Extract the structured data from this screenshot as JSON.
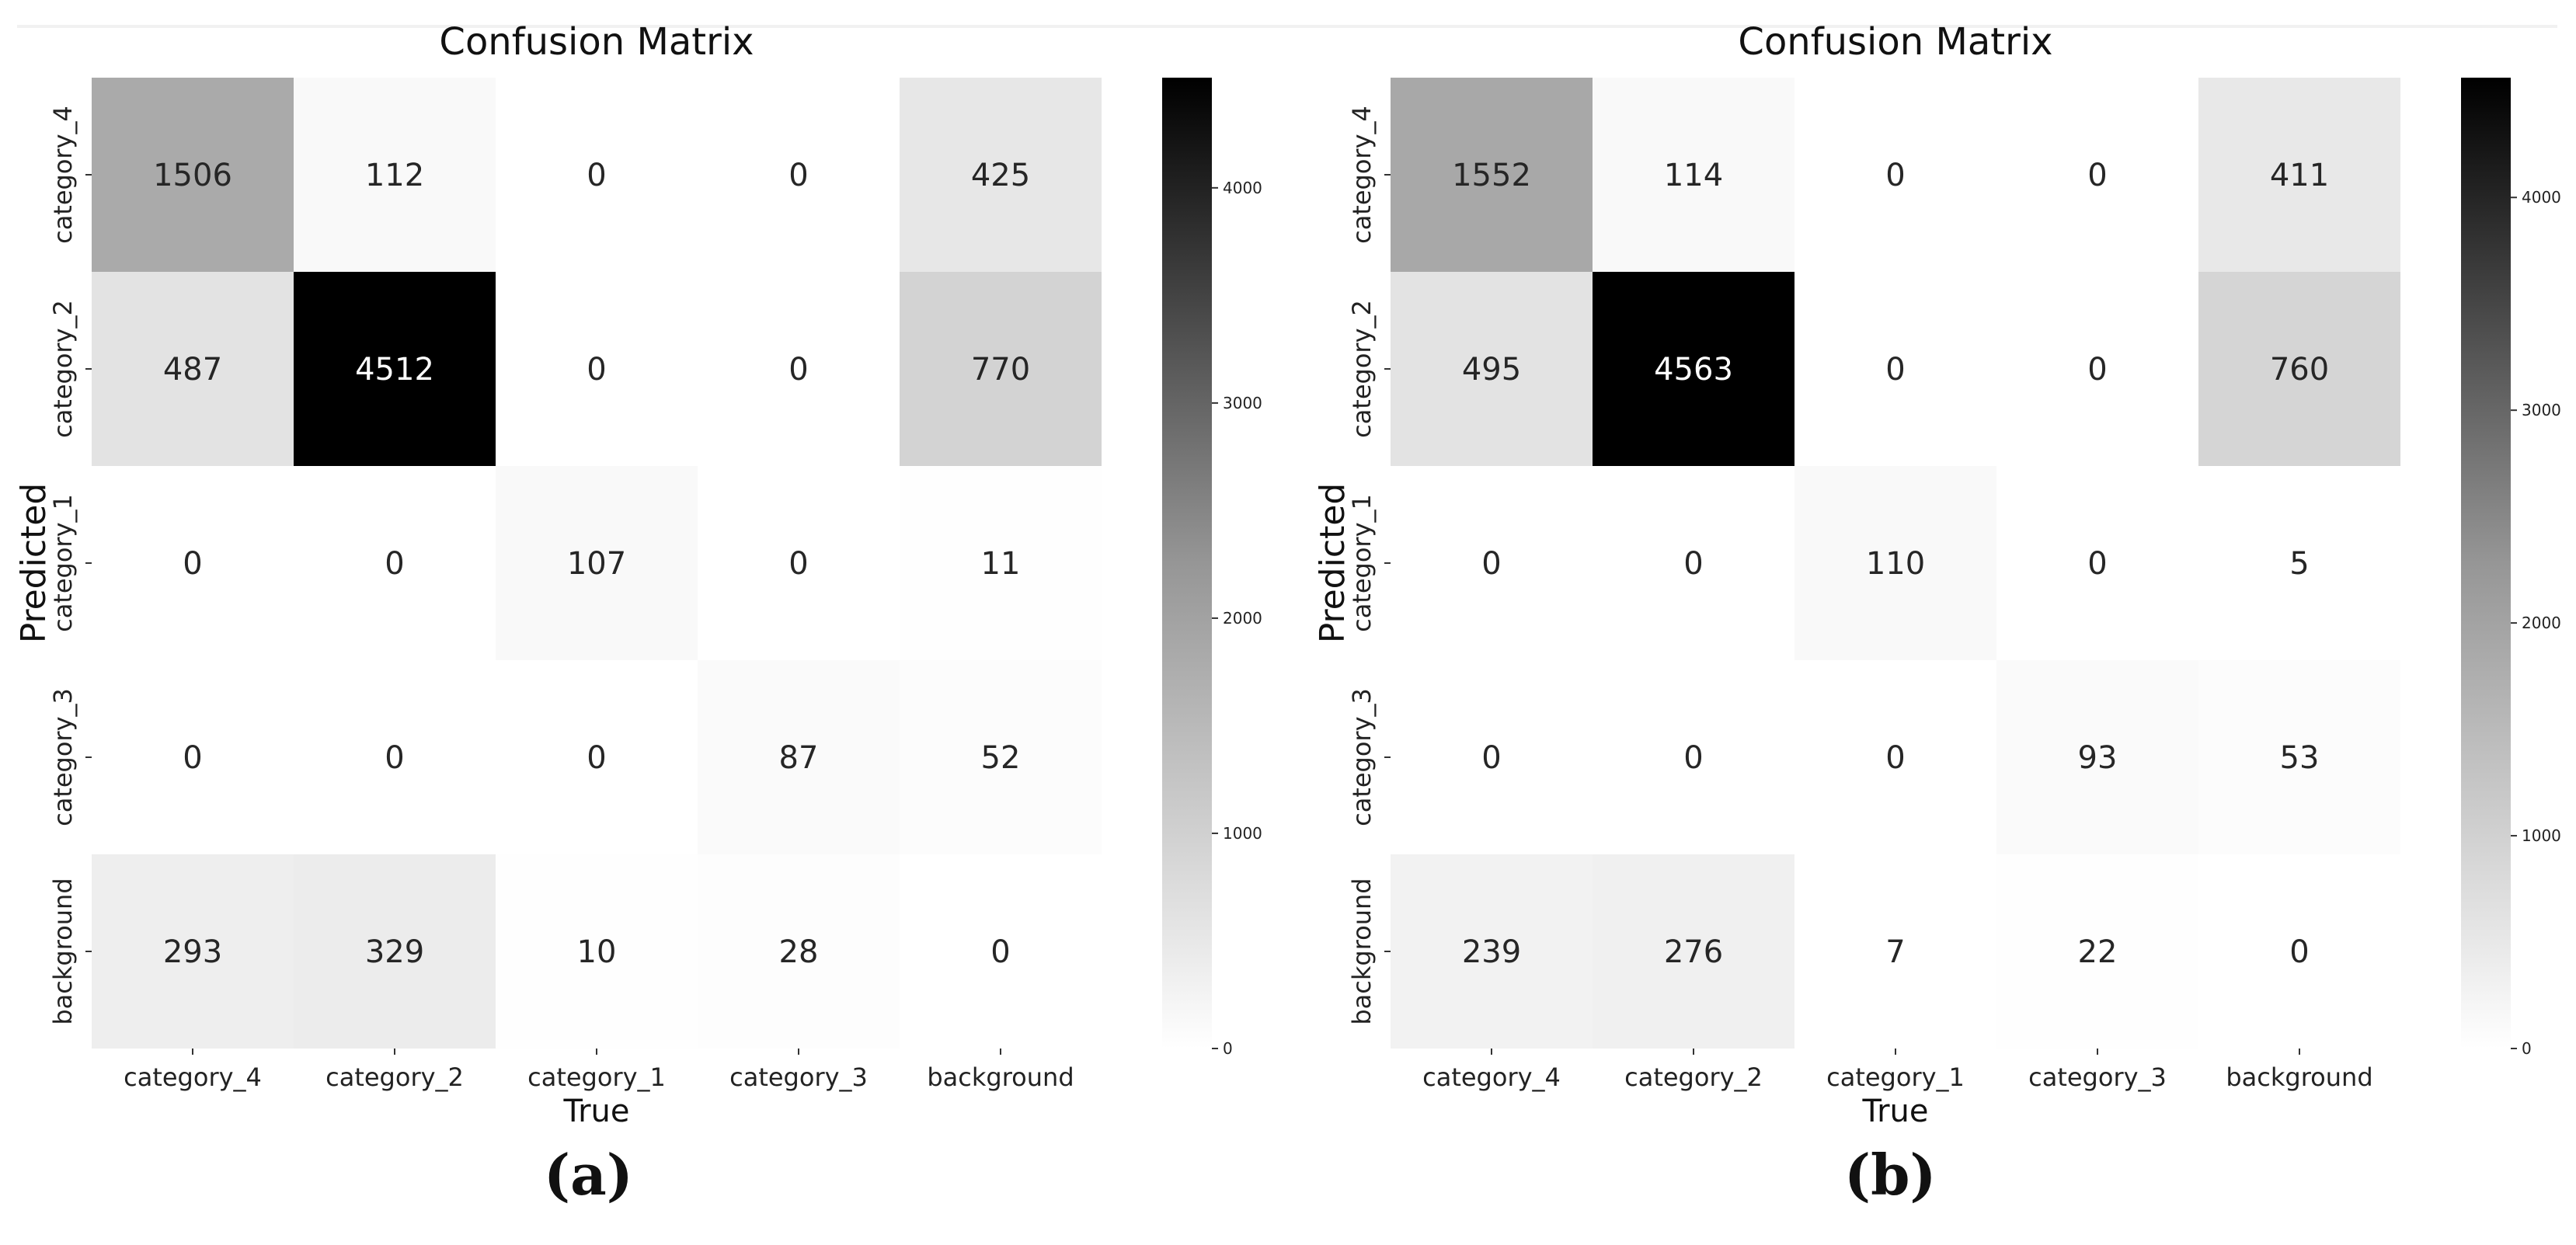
{
  "chart_data": [
    {
      "type": "heatmap",
      "panel_label": "(a)",
      "title": "Confusion Matrix",
      "xlabel": "True",
      "ylabel": "Predicted",
      "x_categories": [
        "category_4",
        "category_2",
        "category_1",
        "category_3",
        "background"
      ],
      "y_categories": [
        "category_4",
        "category_2",
        "category_1",
        "category_3",
        "background"
      ],
      "values": [
        [
          1506,
          112,
          0,
          0,
          425
        ],
        [
          487,
          4512,
          0,
          0,
          770
        ],
        [
          0,
          0,
          107,
          0,
          11
        ],
        [
          0,
          0,
          0,
          87,
          52
        ],
        [
          293,
          329,
          10,
          28,
          0
        ]
      ],
      "colorbar": {
        "min": 0,
        "max": 4512,
        "ticks": [
          0,
          1000,
          2000,
          3000,
          4000
        ],
        "colormap": "Greys"
      }
    },
    {
      "type": "heatmap",
      "panel_label": "(b)",
      "title": "Confusion Matrix",
      "xlabel": "True",
      "ylabel": "Predicted",
      "x_categories": [
        "category_4",
        "category_2",
        "category_1",
        "category_3",
        "background"
      ],
      "y_categories": [
        "category_4",
        "category_2",
        "category_1",
        "category_3",
        "background"
      ],
      "values": [
        [
          1552,
          114,
          0,
          0,
          411
        ],
        [
          495,
          4563,
          0,
          0,
          760
        ],
        [
          0,
          0,
          110,
          0,
          5
        ],
        [
          0,
          0,
          0,
          93,
          53
        ],
        [
          239,
          276,
          7,
          22,
          0
        ]
      ],
      "colorbar": {
        "min": 0,
        "max": 4563,
        "ticks": [
          0,
          1000,
          2000,
          3000,
          4000
        ],
        "colormap": "Greys"
      }
    }
  ]
}
